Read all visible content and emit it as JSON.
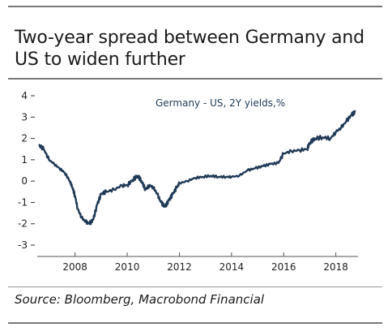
{
  "title": "Two-year spread between Germany and US to widen further",
  "source": "Source: Bloomberg, Macrobond Financial",
  "chart_data": {
    "type": "line",
    "title": "Two-year spread between Germany and US to widen further",
    "xlabel": "",
    "ylabel": "",
    "ylim": [
      -3,
      4
    ],
    "xlim": [
      2006.55,
      2018.85
    ],
    "y_ticks": [
      "4",
      "3",
      "2",
      "1",
      "0",
      "-1",
      "-2",
      "-3"
    ],
    "x_ticks": [
      "2008",
      "2010",
      "2012",
      "2014",
      "2016",
      "2018"
    ],
    "grid": false,
    "legend_position": "top-right",
    "line_color": "#1f3a56",
    "series": [
      {
        "name": "Germany - US, 2Y yields,%",
        "x": [
          2006.6,
          2006.8,
          2007.0,
          2007.2,
          2007.4,
          2007.6,
          2007.8,
          2007.9,
          2008.0,
          2008.1,
          2008.25,
          2008.4,
          2008.55,
          2008.7,
          2008.85,
          2009.0,
          2009.2,
          2009.5,
          2009.8,
          2010.0,
          2010.2,
          2010.4,
          2010.55,
          2010.7,
          2010.85,
          2011.0,
          2011.15,
          2011.3,
          2011.45,
          2011.6,
          2011.75,
          2011.9,
          2012.0,
          2012.3,
          2012.6,
          2012.9,
          2013.2,
          2013.5,
          2013.8,
          2014.0,
          2014.3,
          2014.6,
          2014.9,
          2015.2,
          2015.5,
          2015.8,
          2016.0,
          2016.3,
          2016.6,
          2016.9,
          2017.0,
          2017.2,
          2017.5,
          2017.8,
          2018.0,
          2018.2,
          2018.4,
          2018.6,
          2018.75
        ],
        "values": [
          1.7,
          1.5,
          1.0,
          0.8,
          0.6,
          0.4,
          0.0,
          -0.3,
          -0.7,
          -1.3,
          -1.7,
          -1.9,
          -2.0,
          -1.8,
          -1.1,
          -0.6,
          -0.5,
          -0.4,
          -0.2,
          -0.2,
          0.05,
          0.25,
          0.0,
          -0.4,
          -0.2,
          -0.3,
          -0.6,
          -1.0,
          -1.2,
          -0.9,
          -0.6,
          -0.3,
          -0.1,
          0.0,
          0.15,
          0.2,
          0.25,
          0.2,
          0.2,
          0.2,
          0.25,
          0.5,
          0.6,
          0.7,
          0.8,
          0.85,
          1.3,
          1.4,
          1.45,
          1.5,
          1.8,
          2.0,
          2.05,
          2.0,
          2.3,
          2.5,
          2.8,
          3.1,
          3.25
        ]
      }
    ]
  }
}
